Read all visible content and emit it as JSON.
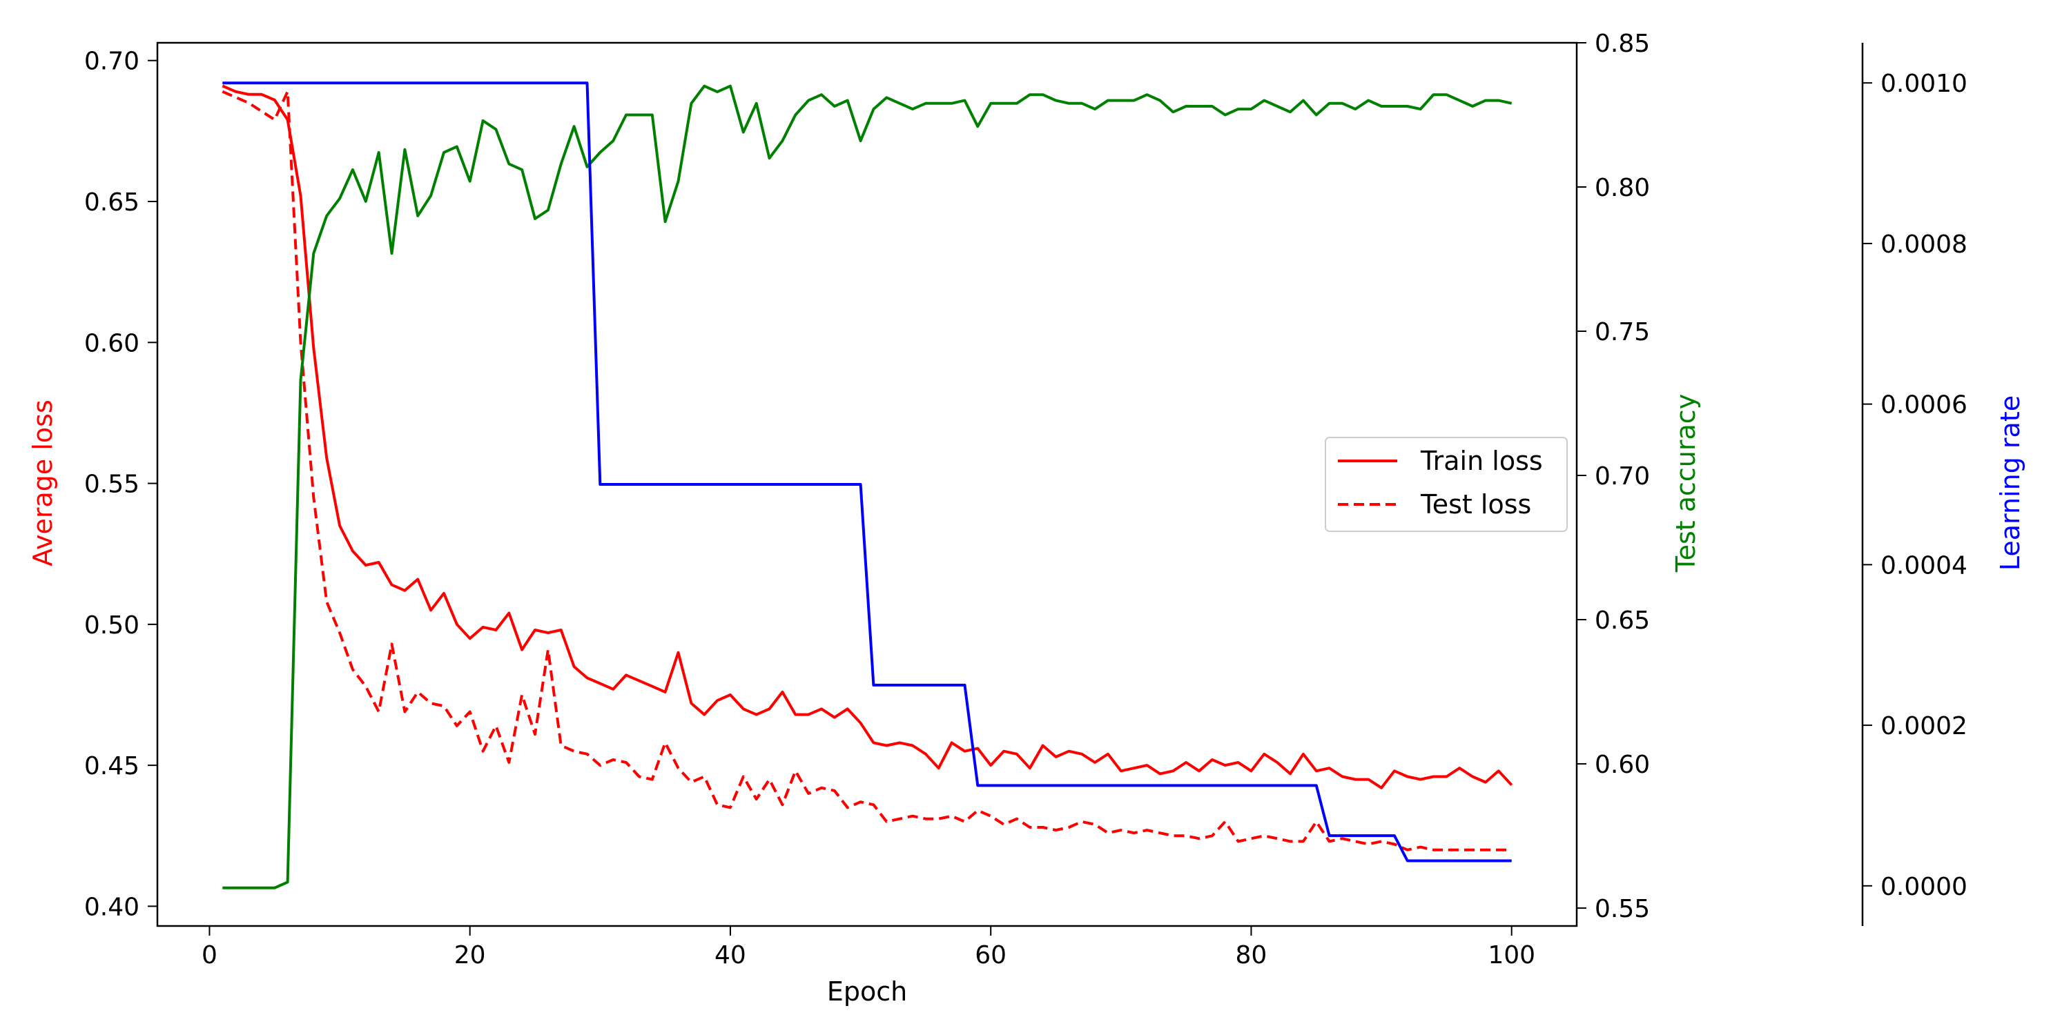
{
  "chart_data": {
    "type": "line",
    "title": "",
    "xlabel": "Epoch",
    "x_ticks": [
      "0",
      "20",
      "40",
      "60",
      "80",
      "100"
    ],
    "xlim": [
      -4,
      105
    ],
    "grid": false,
    "legend": {
      "placement": "center-right",
      "entries": [
        "Train loss",
        "Test loss"
      ]
    },
    "axes": {
      "left": {
        "label": "Average loss",
        "color": "#ff0000",
        "ylim": [
          0.393,
          0.7063
        ],
        "ticks": [
          "0.40",
          "0.45",
          "0.50",
          "0.55",
          "0.60",
          "0.65",
          "0.70"
        ]
      },
      "right": {
        "label": "Test accuracy",
        "color": "#008000",
        "ylim": [
          0.5438,
          0.85
        ],
        "ticks": [
          "0.55",
          "0.60",
          "0.65",
          "0.70",
          "0.75",
          "0.80",
          "0.85"
        ]
      },
      "right_outer": {
        "label": "Learning rate",
        "color": "#0000ff",
        "ylim": [
          -5e-05,
          0.00105
        ],
        "ticks": [
          "0.0000",
          "0.0002",
          "0.0004",
          "0.0006",
          "0.0008",
          "0.0010"
        ]
      }
    },
    "x": [
      1,
      2,
      3,
      4,
      5,
      6,
      7,
      8,
      9,
      10,
      11,
      12,
      13,
      14,
      15,
      16,
      17,
      18,
      19,
      20,
      21,
      22,
      23,
      24,
      25,
      26,
      27,
      28,
      29,
      30,
      31,
      32,
      33,
      34,
      35,
      36,
      37,
      38,
      39,
      40,
      41,
      42,
      43,
      44,
      45,
      46,
      47,
      48,
      49,
      50,
      51,
      52,
      53,
      54,
      55,
      56,
      57,
      58,
      59,
      60,
      61,
      62,
      63,
      64,
      65,
      66,
      67,
      68,
      69,
      70,
      71,
      72,
      73,
      74,
      75,
      76,
      77,
      78,
      79,
      80,
      81,
      82,
      83,
      84,
      85,
      86,
      87,
      88,
      89,
      90,
      91,
      92,
      93,
      94,
      95,
      96,
      97,
      98,
      99,
      100
    ],
    "series": [
      {
        "name": "Train loss",
        "axis": "left",
        "color": "#ff0000",
        "style": "solid",
        "values": [
          0.691,
          0.689,
          0.688,
          0.688,
          0.686,
          0.679,
          0.652,
          0.598,
          0.559,
          0.535,
          0.526,
          0.521,
          0.522,
          0.514,
          0.512,
          0.516,
          0.505,
          0.511,
          0.5,
          0.495,
          0.499,
          0.498,
          0.504,
          0.491,
          0.498,
          0.497,
          0.498,
          0.485,
          0.481,
          0.479,
          0.477,
          0.482,
          0.48,
          0.478,
          0.476,
          0.49,
          0.472,
          0.468,
          0.473,
          0.475,
          0.47,
          0.468,
          0.47,
          0.476,
          0.468,
          0.468,
          0.47,
          0.467,
          0.47,
          0.465,
          0.458,
          0.457,
          0.458,
          0.457,
          0.454,
          0.449,
          0.458,
          0.455,
          0.456,
          0.45,
          0.455,
          0.454,
          0.449,
          0.457,
          0.453,
          0.455,
          0.454,
          0.451,
          0.454,
          0.448,
          0.449,
          0.45,
          0.447,
          0.448,
          0.451,
          0.448,
          0.452,
          0.45,
          0.451,
          0.448,
          0.454,
          0.451,
          0.447,
          0.454,
          0.448,
          0.449,
          0.446,
          0.445,
          0.445,
          0.442,
          0.448,
          0.446,
          0.445,
          0.446,
          0.446,
          0.449,
          0.446,
          0.444,
          0.448,
          0.443
        ]
      },
      {
        "name": "Test loss",
        "axis": "left",
        "color": "#ff0000",
        "style": "dashed",
        "values": [
          0.689,
          0.687,
          0.685,
          0.682,
          0.679,
          0.689,
          0.6,
          0.545,
          0.508,
          0.497,
          0.484,
          0.478,
          0.469,
          0.493,
          0.469,
          0.476,
          0.472,
          0.471,
          0.464,
          0.469,
          0.455,
          0.464,
          0.451,
          0.475,
          0.461,
          0.491,
          0.457,
          0.455,
          0.454,
          0.45,
          0.452,
          0.451,
          0.446,
          0.445,
          0.458,
          0.449,
          0.444,
          0.446,
          0.436,
          0.435,
          0.446,
          0.438,
          0.445,
          0.436,
          0.448,
          0.44,
          0.442,
          0.441,
          0.435,
          0.437,
          0.436,
          0.43,
          0.431,
          0.432,
          0.431,
          0.431,
          0.432,
          0.43,
          0.434,
          0.432,
          0.429,
          0.431,
          0.428,
          0.428,
          0.427,
          0.428,
          0.43,
          0.429,
          0.426,
          0.427,
          0.426,
          0.427,
          0.426,
          0.425,
          0.425,
          0.424,
          0.425,
          0.43,
          0.423,
          0.424,
          0.425,
          0.424,
          0.423,
          0.423,
          0.43,
          0.423,
          0.424,
          0.423,
          0.422,
          0.423,
          0.422,
          0.42,
          0.421,
          0.42,
          0.42,
          0.42,
          0.42,
          0.42,
          0.42,
          0.42
        ]
      },
      {
        "name": "Test accuracy",
        "axis": "right",
        "color": "#008000",
        "style": "solid",
        "values": [
          0.557,
          0.557,
          0.557,
          0.557,
          0.557,
          0.559,
          0.733,
          0.777,
          0.79,
          0.796,
          0.806,
          0.795,
          0.812,
          0.777,
          0.813,
          0.79,
          0.797,
          0.812,
          0.814,
          0.802,
          0.823,
          0.82,
          0.808,
          0.806,
          0.789,
          0.792,
          0.808,
          0.821,
          0.807,
          0.812,
          0.816,
          0.825,
          0.825,
          0.825,
          0.788,
          0.802,
          0.829,
          0.835,
          0.833,
          0.835,
          0.819,
          0.829,
          0.81,
          0.816,
          0.825,
          0.83,
          0.832,
          0.828,
          0.83,
          0.816,
          0.827,
          0.831,
          0.829,
          0.827,
          0.829,
          0.829,
          0.829,
          0.83,
          0.821,
          0.829,
          0.829,
          0.829,
          0.832,
          0.832,
          0.83,
          0.829,
          0.829,
          0.827,
          0.83,
          0.83,
          0.83,
          0.832,
          0.83,
          0.826,
          0.828,
          0.828,
          0.828,
          0.825,
          0.827,
          0.827,
          0.83,
          0.828,
          0.826,
          0.83,
          0.825,
          0.829,
          0.829,
          0.827,
          0.83,
          0.828,
          0.828,
          0.828,
          0.827,
          0.832,
          0.832,
          0.83,
          0.828,
          0.83,
          0.83,
          0.829
        ]
      },
      {
        "name": "Learning rate",
        "axis": "right_outer",
        "color": "#0000ff",
        "style": "solid",
        "values": [
          0.001,
          0.001,
          0.001,
          0.001,
          0.001,
          0.001,
          0.001,
          0.001,
          0.001,
          0.001,
          0.001,
          0.001,
          0.001,
          0.001,
          0.001,
          0.001,
          0.001,
          0.001,
          0.001,
          0.001,
          0.001,
          0.001,
          0.001,
          0.001,
          0.001,
          0.001,
          0.001,
          0.001,
          0.001,
          0.0005,
          0.0005,
          0.0005,
          0.0005,
          0.0005,
          0.0005,
          0.0005,
          0.0005,
          0.0005,
          0.0005,
          0.0005,
          0.0005,
          0.0005,
          0.0005,
          0.0005,
          0.0005,
          0.0005,
          0.0005,
          0.0005,
          0.0005,
          0.0005,
          0.00025,
          0.00025,
          0.00025,
          0.00025,
          0.00025,
          0.00025,
          0.00025,
          0.00025,
          0.000125,
          0.000125,
          0.000125,
          0.000125,
          0.000125,
          0.000125,
          0.000125,
          0.000125,
          0.000125,
          0.000125,
          0.000125,
          0.000125,
          0.000125,
          0.000125,
          0.000125,
          0.000125,
          0.000125,
          0.000125,
          0.000125,
          0.000125,
          0.000125,
          0.000125,
          0.000125,
          0.000125,
          0.000125,
          0.000125,
          0.000125,
          6.25e-05,
          6.25e-05,
          6.25e-05,
          6.25e-05,
          6.25e-05,
          6.25e-05,
          3.125e-05,
          3.125e-05,
          3.125e-05,
          3.125e-05,
          3.125e-05,
          3.125e-05,
          3.125e-05,
          3.125e-05,
          3.125e-05
        ]
      }
    ]
  }
}
